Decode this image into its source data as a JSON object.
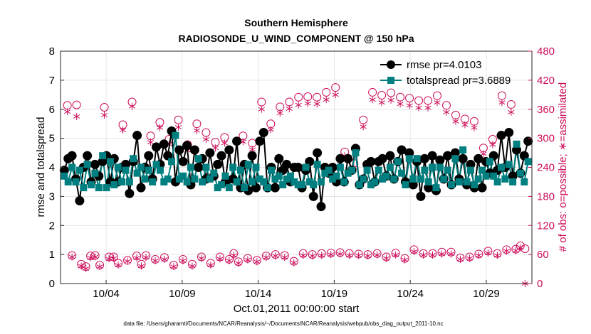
{
  "chart_data": {
    "type": "line",
    "title": "Southern Hemisphere",
    "subtitle": "RADIOSONDE_U_WIND_COMPONENT @ 150 hPa",
    "xlabel": "Oct.01,2011 00:00:00 start",
    "ylabel": "rmse and totalspread",
    "ylabel_right": "# of obs: o=possible; ∗=assimilated",
    "footer": "data file: /Users/gharamti/Documents/NCAR/Reanalysis/~/Documents/NCAR/Reanalysis/webpub/obs_diag_output_2011-10.nc",
    "xlim": [
      0.5,
      31.5
    ],
    "ylim": [
      0,
      8
    ],
    "ylim_right": [
      0,
      480
    ],
    "x_ticks": [
      3.5,
      8.5,
      13.5,
      18.5,
      23.5,
      28.5
    ],
    "x_tick_labels": [
      "10/04",
      "10/09",
      "10/14",
      "10/19",
      "10/24",
      "10/29"
    ],
    "y_ticks": [
      0,
      1,
      2,
      3,
      4,
      5,
      6,
      7,
      8
    ],
    "y_tick_labels": [
      "0",
      "1",
      "2",
      "3",
      "4",
      "5",
      "6",
      "7",
      "8"
    ],
    "y_ticks_right": [
      0,
      60,
      120,
      180,
      240,
      300,
      360,
      420,
      480
    ],
    "y_tick_labels_right": [
      "0",
      "60",
      "120",
      "180",
      "240",
      "300",
      "360",
      "420",
      "480"
    ],
    "legend": [
      {
        "label": "rmse pr=4.0103",
        "color": "#000000"
      },
      {
        "label": "totalspread pr=3.6889",
        "color": "#007f80"
      }
    ],
    "colors": {
      "rmse": "#000000",
      "spread": "#007f80",
      "obs": "#cc0d5b",
      "grid": "#dcdcdc"
    },
    "series": [
      {
        "name": "rmse",
        "values": [
          3.9,
          4.3,
          4.4,
          3.6,
          2.85,
          4.0,
          4.4,
          3.5,
          4.1,
          3.7,
          4.2,
          4.4,
          3.5,
          4.3,
          3.5,
          4.0,
          4.1,
          3.1,
          4.2,
          5.1,
          3.3,
          4.0,
          4.4,
          3.6,
          4.7,
          4.1,
          4.8,
          4.4,
          5.25,
          3.5,
          4.6,
          4.2,
          4.75,
          3.4,
          4.6,
          4.0,
          4.3,
          3.6,
          4.5,
          3.7,
          4.1,
          4.4,
          3.5,
          4.6,
          3.6,
          4.9,
          3.3,
          4.1,
          3.2,
          4.4,
          3.3,
          4.9,
          5.2,
          3.3,
          4.0,
          3.3,
          4.3,
          3.9,
          4.1,
          3.5,
          4.0,
          4.0,
          3.3,
          3.9,
          4.2,
          3.0,
          4.5,
          2.65,
          4.0,
          3.8,
          4.0,
          3.5,
          4.3,
          3.5,
          4.3,
          3.9,
          4.65,
          3.4,
          3.6,
          4.1,
          4.2,
          3.5,
          4.2,
          4.3,
          3.7,
          4.4,
          3.6,
          4.2,
          4.6,
          3.5,
          4.5,
          3.4,
          4.2,
          3.0,
          4.3,
          3.3,
          4.4,
          3.2,
          4.25,
          3.6,
          4.4,
          3.4,
          4.5,
          3.6,
          4.3,
          3.4,
          4.1,
          3.3,
          4.3,
          3.3,
          4.2,
          3.8,
          4.4,
          3.9,
          5.1,
          4.0,
          5.2,
          3.7,
          4.6,
          3.8,
          4.4,
          4.9
        ]
      },
      {
        "name": "totalspread",
        "values": [
          3.7,
          3.5,
          4.0,
          3.5,
          3.9,
          3.3,
          4.1,
          3.4,
          3.8,
          3.3,
          4.4,
          3.3,
          4.2,
          3.4,
          4.0,
          3.5,
          3.9,
          3.5,
          4.3,
          3.8,
          4.0,
          3.6,
          3.9,
          3.5,
          4.1,
          3.9,
          3.5,
          3.6,
          4.2,
          5.1,
          3.6,
          3.7,
          3.5,
          4.0,
          3.6,
          4.3,
          3.5,
          4.0,
          3.6,
          3.8,
          3.3,
          3.4,
          3.7,
          3.3,
          4.0,
          3.5,
          3.9,
          3.3,
          4.1,
          3.5,
          4.0,
          3.6,
          3.5,
          3.3,
          3.9,
          3.6,
          3.7,
          3.4,
          3.6,
          3.7,
          3.5,
          3.4,
          3.4,
          4.0,
          3.5,
          3.4,
          4.1,
          3.5,
          3.8,
          3.9,
          3.6,
          3.7,
          4.0,
          3.5,
          3.8,
          3.9,
          4.5,
          3.4,
          3.6,
          3.9,
          3.4,
          3.5,
          3.9,
          3.6,
          3.7,
          4.0,
          3.6,
          4.2,
          3.8,
          3.4,
          4.3,
          3.6,
          4.3,
          3.6,
          3.9,
          3.5,
          4.0,
          3.3,
          4.0,
          3.6,
          3.9,
          3.4,
          4.3,
          3.5,
          4.6,
          3.5,
          3.9,
          3.4,
          3.6,
          3.9,
          3.7,
          4.2,
          3.7,
          3.5,
          4.0,
          3.6,
          4.1,
          3.5,
          4.8,
          3.8,
          3.5,
          4.2
        ]
      },
      {
        "name": "obs_possible",
        "values": [
          368,
          58,
          369,
          40,
          35,
          57,
          58,
          38,
          364,
          55,
          55,
          42,
          328,
          48,
          375,
          57,
          40,
          58,
          305,
          50,
          333,
          54,
          298,
          38,
          338,
          50,
          287,
          40,
          330,
          55,
          312,
          42,
          292,
          55,
          302,
          50,
          62,
          45,
          305,
          52,
          290,
          48,
          375,
          57,
          330,
          60,
          365,
          58,
          375,
          46,
          385,
          62,
          386,
          60,
          385,
          62,
          395,
          63,
          405,
          64,
          272,
          62,
          248,
          61,
          338,
          60,
          395,
          62,
          389,
          55,
          394,
          63,
          385,
          52,
          383,
          70,
          378,
          62,
          378,
          62,
          388,
          65,
          368,
          65,
          348,
          53,
          340,
          55,
          335,
          61,
          280,
          67,
          298,
          62,
          388,
          70,
          370,
          71,
          78,
          72
        ]
      },
      {
        "name": "obs_assimilated",
        "values": [
          355,
          55,
          345,
          36,
          31,
          53,
          55,
          35,
          348,
          51,
          52,
          38,
          317,
          46,
          366,
          53,
          36,
          54,
          292,
          47,
          322,
          50,
          288,
          35,
          323,
          47,
          275,
          36,
          316,
          52,
          298,
          38,
          280,
          51,
          290,
          47,
          58,
          42,
          293,
          49,
          277,
          45,
          360,
          54,
          318,
          57,
          352,
          54,
          361,
          43,
          369,
          58,
          372,
          57,
          371,
          58,
          380,
          60,
          390,
          61,
          264,
          58,
          240,
          58,
          324,
          57,
          380,
          59,
          374,
          52,
          379,
          59,
          371,
          49,
          368,
          66,
          363,
          59,
          363,
          59,
          374,
          61,
          354,
          61,
          335,
          50,
          328,
          52,
          322,
          58,
          268,
          63,
          287,
          58,
          374,
          67,
          354,
          68,
          74,
          0
        ]
      }
    ]
  }
}
